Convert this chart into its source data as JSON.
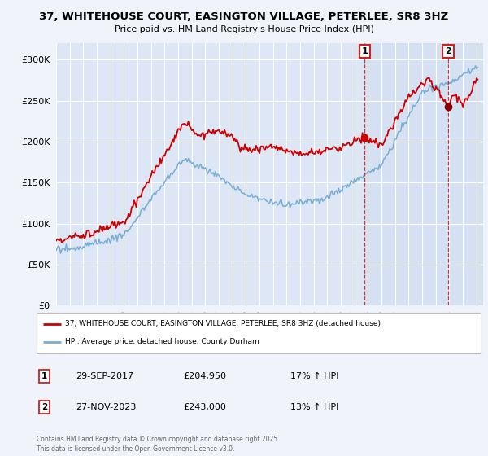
{
  "title_line1": "37, WHITEHOUSE COURT, EASINGTON VILLAGE, PETERLEE, SR8 3HZ",
  "title_line2": "Price paid vs. HM Land Registry's House Price Index (HPI)",
  "background_color": "#f0f4fa",
  "plot_bg_color": "#dce6f5",
  "highlight_color": "#c8d8f0",
  "grid_color": "#ffffff",
  "ylim": [
    0,
    320000
  ],
  "yticks": [
    0,
    50000,
    100000,
    150000,
    200000,
    250000,
    300000
  ],
  "ytick_labels": [
    "£0",
    "£50K",
    "£100K",
    "£150K",
    "£200K",
    "£250K",
    "£300K"
  ],
  "xmin": 1995.0,
  "xmax": 2026.5,
  "marker1_x": 2017.75,
  "marker1_y": 204950,
  "marker2_x": 2023.92,
  "marker2_y": 243000,
  "legend_line1": "37, WHITEHOUSE COURT, EASINGTON VILLAGE, PETERLEE, SR8 3HZ (detached house)",
  "legend_line2": "HPI: Average price, detached house, County Durham",
  "annotation1_date": "29-SEP-2017",
  "annotation1_price": "£204,950",
  "annotation1_hpi": "17% ↑ HPI",
  "annotation2_date": "27-NOV-2023",
  "annotation2_price": "£243,000",
  "annotation2_hpi": "13% ↑ HPI",
  "footer": "Contains HM Land Registry data © Crown copyright and database right 2025.\nThis data is licensed under the Open Government Licence v3.0.",
  "line_color_red": "#cc0000",
  "line_color_blue": "#7aadd4",
  "marker_box_color": "#cc2222"
}
